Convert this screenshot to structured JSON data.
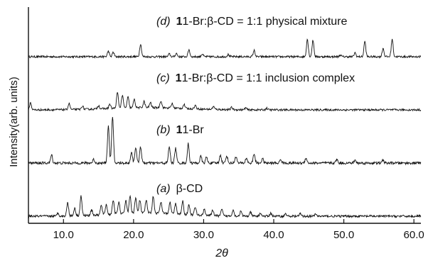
{
  "chart_data": {
    "type": "line",
    "title": "",
    "xlabel": "2θ",
    "ylabel": "Intensity(arb. units)",
    "xlim": [
      5,
      61
    ],
    "x_ticks": [
      "10.0",
      "20.0",
      "30.0",
      "40.0",
      "50.0",
      "60.0"
    ],
    "x_tick_values": [
      10,
      20,
      30,
      40,
      50,
      60
    ],
    "grid": false,
    "line_color": "#111111",
    "series": [
      {
        "name": "(d) 1-Br:β-CD = 1:1 physical mixture",
        "label_prefix": "(d)",
        "label_text": "1-Br:β-CD = 1:1 physical mixture",
        "baseline": 0.0,
        "peaks": [
          [
            16.4,
            0.2
          ],
          [
            17.1,
            0.16
          ],
          [
            21.0,
            0.45
          ],
          [
            25.1,
            0.1
          ],
          [
            26.1,
            0.12
          ],
          [
            27.9,
            0.25
          ],
          [
            29.8,
            0.1
          ],
          [
            33.5,
            0.08
          ],
          [
            37.2,
            0.22
          ],
          [
            44.8,
            0.62
          ],
          [
            45.6,
            0.58
          ],
          [
            49.5,
            0.06
          ],
          [
            51.6,
            0.14
          ],
          [
            53.0,
            0.55
          ],
          [
            55.6,
            0.3
          ],
          [
            56.9,
            0.62
          ]
        ]
      },
      {
        "name": "(c) 1-Br:β-CD = 1:1 inclusion complex",
        "label_prefix": "(c)",
        "label_text": "1-Br:β-CD = 1:1 inclusion complex",
        "baseline": 0.0,
        "peaks": [
          [
            5.3,
            0.25
          ],
          [
            10.8,
            0.22
          ],
          [
            12.7,
            0.12
          ],
          [
            15.0,
            0.12
          ],
          [
            16.6,
            0.15
          ],
          [
            17.7,
            0.55
          ],
          [
            18.4,
            0.45
          ],
          [
            19.2,
            0.38
          ],
          [
            20.1,
            0.3
          ],
          [
            21.5,
            0.22
          ],
          [
            22.4,
            0.18
          ],
          [
            23.9,
            0.25
          ],
          [
            25.5,
            0.16
          ],
          [
            27.2,
            0.14
          ],
          [
            28.8,
            0.12
          ],
          [
            31.4,
            0.1
          ],
          [
            34.0,
            0.08
          ],
          [
            36.0,
            0.07
          ],
          [
            39.0,
            0.06
          ]
        ]
      },
      {
        "name": "(b) 1-Br",
        "label_prefix": "(b)",
        "label_text": "1-Br",
        "baseline": 0.0,
        "peaks": [
          [
            8.3,
            0.22
          ],
          [
            14.3,
            0.1
          ],
          [
            16.4,
            1.0
          ],
          [
            17.0,
            1.25
          ],
          [
            19.7,
            0.3
          ],
          [
            20.3,
            0.42
          ],
          [
            21.0,
            0.45
          ],
          [
            25.1,
            0.45
          ],
          [
            26.0,
            0.4
          ],
          [
            27.8,
            0.52
          ],
          [
            29.6,
            0.18
          ],
          [
            30.4,
            0.16
          ],
          [
            32.4,
            0.22
          ],
          [
            33.3,
            0.2
          ],
          [
            34.6,
            0.18
          ],
          [
            36.1,
            0.14
          ],
          [
            37.2,
            0.25
          ],
          [
            38.4,
            0.12
          ],
          [
            41.0,
            0.1
          ],
          [
            44.6,
            0.15
          ],
          [
            49.0,
            0.1
          ],
          [
            51.6,
            0.08
          ],
          [
            55.6,
            0.08
          ]
        ]
      },
      {
        "name": "(a) β-CD",
        "label_prefix": "(a)",
        "label_text": "β-CD",
        "baseline": 0.0,
        "peaks": [
          [
            9.2,
            0.1
          ],
          [
            10.6,
            0.42
          ],
          [
            11.6,
            0.25
          ],
          [
            12.5,
            0.62
          ],
          [
            14.0,
            0.18
          ],
          [
            15.4,
            0.3
          ],
          [
            16.1,
            0.32
          ],
          [
            17.1,
            0.45
          ],
          [
            17.9,
            0.38
          ],
          [
            18.9,
            0.42
          ],
          [
            19.5,
            0.55
          ],
          [
            20.3,
            0.48
          ],
          [
            20.9,
            0.4
          ],
          [
            21.8,
            0.4
          ],
          [
            22.8,
            0.52
          ],
          [
            23.9,
            0.35
          ],
          [
            25.2,
            0.35
          ],
          [
            26.0,
            0.32
          ],
          [
            27.0,
            0.42
          ],
          [
            27.9,
            0.3
          ],
          [
            28.8,
            0.25
          ],
          [
            30.1,
            0.2
          ],
          [
            31.3,
            0.18
          ],
          [
            32.6,
            0.2
          ],
          [
            34.2,
            0.2
          ],
          [
            35.3,
            0.15
          ],
          [
            36.7,
            0.12
          ],
          [
            38.1,
            0.1
          ],
          [
            39.6,
            0.1
          ],
          [
            41.7,
            0.08
          ],
          [
            43.8,
            0.08
          ],
          [
            46.0,
            0.07
          ]
        ]
      }
    ]
  }
}
